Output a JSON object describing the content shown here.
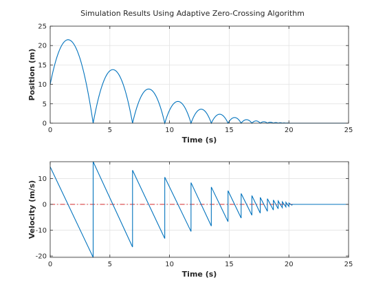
{
  "figure_title": "Simulation Results Using Adaptive Zero-Crossing Algorithm",
  "chart_data": [
    {
      "type": "line",
      "name": "position",
      "title": "Simulation Results Using Adaptive Zero-Crossing Algorithm",
      "xlabel": "Time (s)",
      "ylabel": "Position (m)",
      "xlim": [
        0,
        25
      ],
      "ylim": [
        0,
        25
      ],
      "xticks": [
        0,
        5,
        10,
        15,
        20,
        25
      ],
      "yticks": [
        0,
        5,
        10,
        15,
        20,
        25
      ],
      "grid": true,
      "line_color": "#0072BD",
      "bounces": [
        {
          "t0": 0.0,
          "t1": 3.6,
          "peak_t": 1.5,
          "peak": 21.5,
          "y0": 10
        },
        {
          "t0": 3.6,
          "t1": 6.9,
          "peak_t": 5.25,
          "peak": 13.8
        },
        {
          "t0": 6.9,
          "t1": 9.6,
          "peak_t": 8.25,
          "peak": 8.8
        },
        {
          "t0": 9.6,
          "t1": 11.8,
          "peak_t": 10.7,
          "peak": 5.6
        },
        {
          "t0": 11.8,
          "t1": 13.5,
          "peak_t": 12.65,
          "peak": 3.6
        },
        {
          "t0": 13.5,
          "t1": 14.9,
          "peak_t": 14.2,
          "peak": 2.3
        },
        {
          "t0": 14.9,
          "t1": 16.0,
          "peak_t": 15.45,
          "peak": 1.45
        },
        {
          "t0": 16.0,
          "t1": 16.9,
          "peak_t": 16.45,
          "peak": 0.9
        },
        {
          "t0": 16.9,
          "t1": 17.6,
          "peak_t": 17.25,
          "peak": 0.58
        },
        {
          "t0": 17.6,
          "t1": 18.2,
          "peak_t": 17.9,
          "peak": 0.37
        },
        {
          "t0": 18.2,
          "t1": 18.7,
          "peak_t": 18.45,
          "peak": 0.24
        },
        {
          "t0": 18.7,
          "t1": 19.1,
          "peak_t": 18.9,
          "peak": 0.15
        },
        {
          "t0": 19.1,
          "t1": 19.45,
          "peak_t": 19.27,
          "peak": 0.1
        },
        {
          "t0": 19.45,
          "t1": 19.75,
          "peak_t": 19.6,
          "peak": 0.06
        },
        {
          "t0": 19.75,
          "t1": 20.0,
          "peak_t": 19.87,
          "peak": 0.04
        }
      ],
      "rest_after": 20.0
    },
    {
      "type": "line",
      "name": "velocity",
      "xlabel": "Time (s)",
      "ylabel": "Velocity (m/s)",
      "xlim": [
        0,
        25
      ],
      "ylim": [
        -20.5,
        16.5
      ],
      "xticks": [
        0,
        5,
        10,
        15,
        20,
        25
      ],
      "yticks": [
        -20,
        -10,
        0,
        10
      ],
      "grid": true,
      "line_color": "#0072BD",
      "zero_line": {
        "y": 0,
        "color": "#D62728",
        "style": "dash-dot"
      },
      "segments": [
        {
          "t0": 0.0,
          "t1": 3.6,
          "v0": 14.5,
          "v1": -20.5
        },
        {
          "t0": 3.6,
          "t1": 6.9,
          "v0": 16.5,
          "v1": -16.5
        },
        {
          "t0": 6.9,
          "t1": 9.6,
          "v0": 13.2,
          "v1": -13.2
        },
        {
          "t0": 9.6,
          "t1": 11.8,
          "v0": 10.5,
          "v1": -10.5
        },
        {
          "t0": 11.8,
          "t1": 13.5,
          "v0": 8.4,
          "v1": -8.4
        },
        {
          "t0": 13.5,
          "t1": 14.9,
          "v0": 6.7,
          "v1": -6.7
        },
        {
          "t0": 14.9,
          "t1": 16.0,
          "v0": 5.3,
          "v1": -5.3
        },
        {
          "t0": 16.0,
          "t1": 16.9,
          "v0": 4.2,
          "v1": -4.2
        },
        {
          "t0": 16.9,
          "t1": 17.6,
          "v0": 3.4,
          "v1": -3.4
        },
        {
          "t0": 17.6,
          "t1": 18.2,
          "v0": 2.7,
          "v1": -2.7
        },
        {
          "t0": 18.2,
          "t1": 18.7,
          "v0": 2.2,
          "v1": -2.2
        },
        {
          "t0": 18.7,
          "t1": 19.1,
          "v0": 1.7,
          "v1": -1.7
        },
        {
          "t0": 19.1,
          "t1": 19.45,
          "v0": 1.3,
          "v1": -1.3
        },
        {
          "t0": 19.45,
          "t1": 19.75,
          "v0": 1.0,
          "v1": -1.0
        },
        {
          "t0": 19.75,
          "t1": 20.0,
          "v0": 0.8,
          "v1": -0.8
        },
        {
          "t0": 20.0,
          "t1": 20.25,
          "v0": 0.5,
          "v1": -0.3
        }
      ],
      "rest_after": 20.3
    }
  ]
}
